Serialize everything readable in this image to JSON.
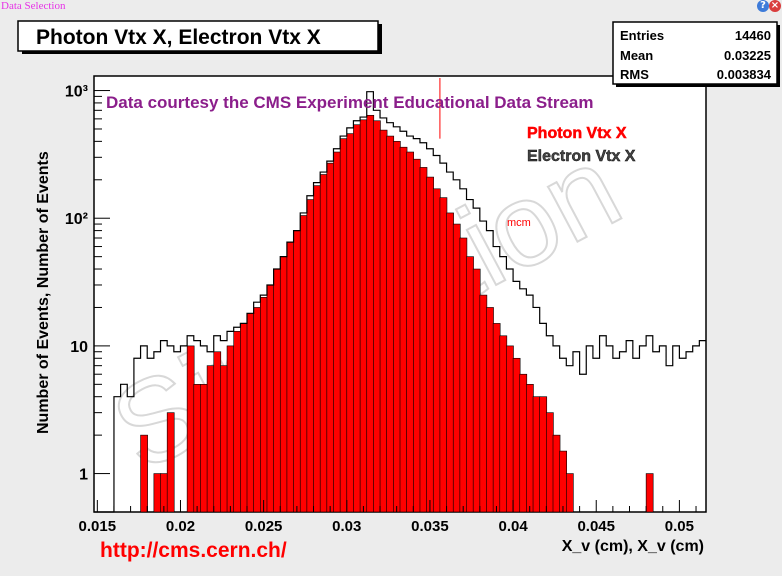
{
  "app": {
    "title": "Data Selection",
    "help_icon": "?",
    "close_icon": "×"
  },
  "colors": {
    "photon_fill": "#ff0000",
    "electron_line": "#000000",
    "courtesy": "#8b1e8b",
    "url": "#ff0000",
    "watermark": "#e8e8e8"
  },
  "stats": {
    "entries_label": "Entries",
    "entries_value": "14460",
    "mean_label": "Mean",
    "mean_value": "0.03225",
    "rms_label": "RMS",
    "rms_value": "0.003834"
  },
  "annotations": {
    "courtesy": "Data courtesy the CMS Experiment Educational Data Stream",
    "url": "http://cms.cern.ch/",
    "watermark": "Simulation",
    "marker": "mcm"
  },
  "chart_data": {
    "type": "histogram",
    "title": "Photon Vtx X, Electron Vtx X",
    "xlabel": "X_v (cm), X_v (cm)",
    "ylabel": "Number of Events, Number of Events",
    "xlim": [
      0.0148,
      0.0516
    ],
    "ylim": [
      0.5,
      1300
    ],
    "y_scale": "log",
    "x_ticks": [
      "0.015",
      "0.02",
      "0.025",
      "0.03",
      "0.035",
      "0.04",
      "0.045",
      "0.05"
    ],
    "y_ticks": [
      "1",
      "10",
      "10²",
      "10³"
    ],
    "bin_width": 0.0004,
    "x_start": 0.0148,
    "legend": [
      "Photon Vtx X",
      "Electron Vtx X"
    ],
    "series": [
      {
        "name": "Photon Vtx X",
        "style": "filled",
        "values": [
          0,
          0,
          0,
          0,
          0,
          0,
          0,
          2,
          0,
          1,
          1,
          3,
          0,
          0,
          10,
          5,
          5,
          7,
          9,
          7,
          10,
          13,
          15,
          18,
          20,
          24,
          30,
          40,
          50,
          65,
          80,
          105,
          140,
          180,
          220,
          270,
          330,
          420,
          460,
          540,
          590,
          640,
          580,
          490,
          440,
          400,
          360,
          330,
          290,
          250,
          210,
          170,
          145,
          110,
          90,
          70,
          50,
          40,
          25,
          20,
          15,
          12,
          10,
          8,
          6,
          5,
          4,
          4,
          3,
          2,
          1.5,
          1,
          0,
          0,
          0,
          0,
          0,
          0,
          0,
          0,
          0,
          0,
          0,
          1,
          0,
          0,
          0,
          0,
          0,
          0,
          0,
          0,
          0
        ]
      },
      {
        "name": "Electron Vtx X",
        "style": "step",
        "values": [
          0,
          0,
          0,
          4,
          5,
          4,
          8,
          10,
          8,
          9,
          11,
          10,
          9,
          10,
          12,
          11,
          10,
          9,
          12,
          11,
          13,
          14,
          15,
          18,
          22,
          25,
          30,
          40,
          50,
          65,
          80,
          110,
          150,
          190,
          230,
          280,
          350,
          440,
          510,
          580,
          620,
          980,
          700,
          610,
          560,
          520,
          480,
          440,
          420,
          390,
          350,
          310,
          270,
          230,
          200,
          170,
          140,
          120,
          95,
          80,
          60,
          50,
          40,
          32,
          28,
          25,
          20,
          15,
          12,
          10,
          8,
          7,
          9,
          6,
          10,
          8,
          12,
          10,
          8,
          9,
          11,
          8,
          10,
          12,
          9,
          10,
          7,
          10,
          8,
          9,
          10,
          11,
          12
        ]
      }
    ],
    "stats_box": {
      "entries": 14460,
      "mean": 0.03225,
      "rms": 0.003834
    },
    "marker_x": 0.0356
  }
}
